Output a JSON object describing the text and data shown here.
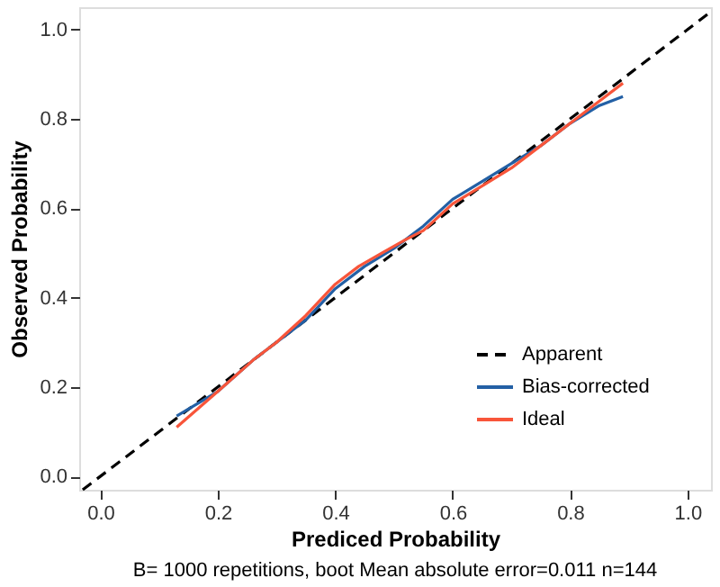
{
  "chart_data": {
    "type": "line",
    "xlabel": "Prediced Probability",
    "ylabel": "Observed Probability",
    "xlim": [
      -0.036,
      1.04
    ],
    "ylim": [
      -0.03,
      1.05
    ],
    "xticks": [
      {
        "value": 0,
        "label": "0.0"
      },
      0.2,
      0.4,
      0.6,
      0.8,
      {
        "value": 1,
        "label": "1.0"
      }
    ],
    "yticks": [
      {
        "value": 0,
        "label": "0.0"
      },
      0.2,
      0.4,
      0.6,
      0.8,
      {
        "value": 1,
        "label": "1.0"
      }
    ],
    "series": [
      {
        "name": "Apparent",
        "color": "#000000",
        "line_style": "dashed",
        "x": [
          -0.03,
          1.04
        ],
        "values": [
          -0.03,
          1.04
        ]
      },
      {
        "name": "Bias-corrected",
        "color": "#2360a5",
        "line_style": "solid",
        "x": [
          0.13,
          0.2,
          0.26,
          0.3,
          0.35,
          0.4,
          0.45,
          0.5,
          0.55,
          0.6,
          0.65,
          0.7,
          0.75,
          0.8,
          0.85,
          0.89
        ],
        "values": [
          0.135,
          0.19,
          0.26,
          0.3,
          0.35,
          0.42,
          0.47,
          0.51,
          0.56,
          0.62,
          0.66,
          0.7,
          0.74,
          0.79,
          0.83,
          0.85
        ]
      },
      {
        "name": "Ideal",
        "color": "#f8553a",
        "line_style": "solid",
        "x": [
          0.13,
          0.2,
          0.26,
          0.3,
          0.35,
          0.4,
          0.44,
          0.48,
          0.52,
          0.55,
          0.6,
          0.65,
          0.7,
          0.75,
          0.8,
          0.85,
          0.89
        ],
        "values": [
          0.11,
          0.19,
          0.26,
          0.3,
          0.36,
          0.43,
          0.47,
          0.5,
          0.53,
          0.55,
          0.61,
          0.65,
          0.69,
          0.74,
          0.79,
          0.84,
          0.88
        ]
      }
    ],
    "legend": "bottom right",
    "grid": false,
    "annotations": [
      "B= 1000 repetitions, boot  Mean absolute error=0.011 n=144"
    ]
  }
}
